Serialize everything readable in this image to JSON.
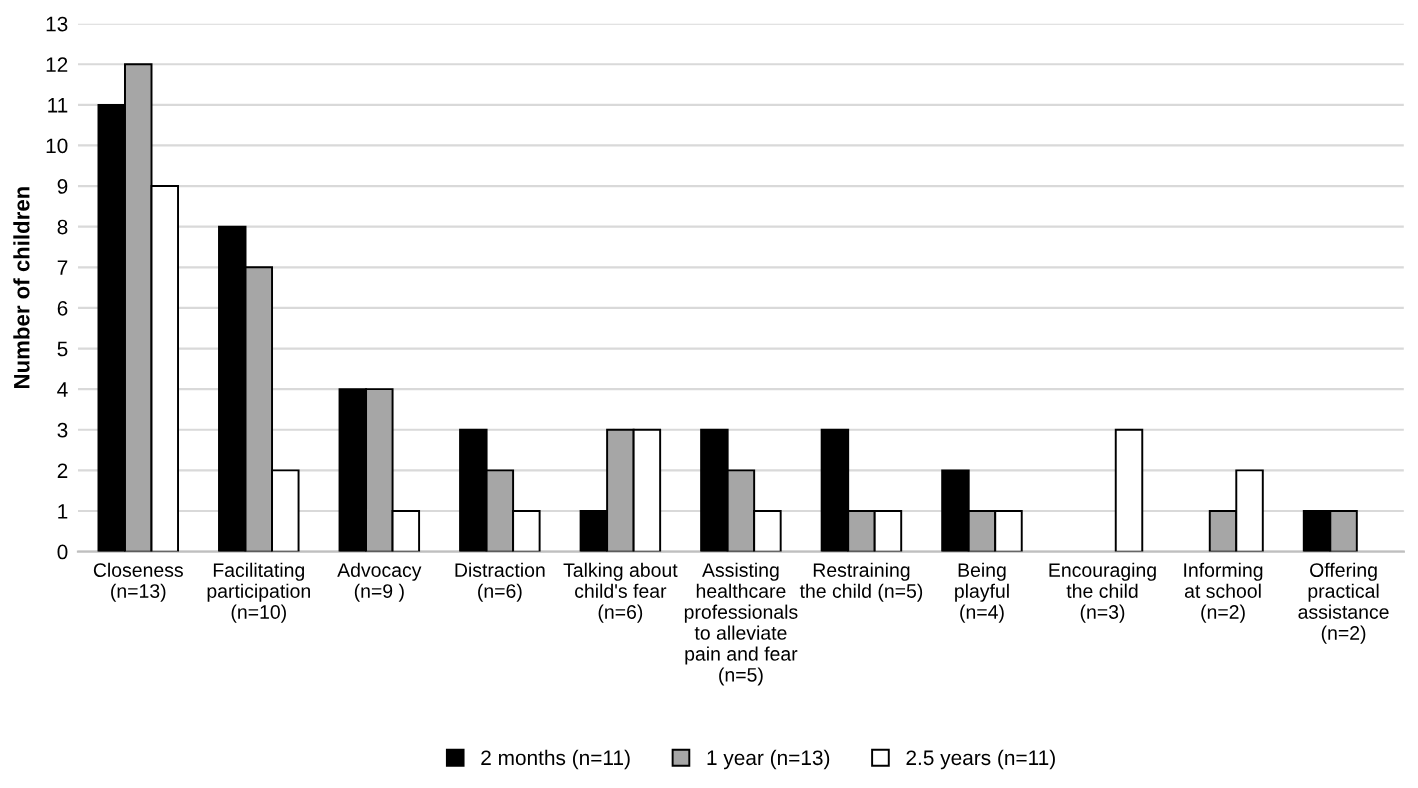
{
  "chart_data": {
    "type": "bar",
    "ylabel": "Number of children",
    "categories": [
      "Closeness\n(n=13)",
      "Facilitating\nparticipation\n(n=10)",
      "Advocacy\n(n=9 )",
      "Distraction\n(n=6)",
      "Talking about\nchild's fear\n(n=6)",
      "Assisting\nhealthcare\nprofessionals\nto alleviate\npain and fear\n(n=5)",
      "Restraining\nthe child (n=5)",
      "Being\nplayful\n(n=4)",
      "Encouraging\nthe child\n(n=3)",
      "Informing\nat school\n(n=2)",
      "Offering\npractical\nassistance\n(n=2)"
    ],
    "series": [
      {
        "name": "2 months (n=11)",
        "color": "#000000",
        "values": [
          11,
          8,
          4,
          3,
          1,
          3,
          3,
          2,
          null,
          null,
          1
        ]
      },
      {
        "name": "1 year (n=13)",
        "color": "#a6a6a6",
        "values": [
          12,
          7,
          4,
          2,
          3,
          2,
          1,
          1,
          null,
          1,
          1
        ]
      },
      {
        "name": "2.5 years (n=11)",
        "color": "#ffffff",
        "values": [
          9,
          2,
          1,
          1,
          3,
          1,
          1,
          1,
          3,
          2,
          null
        ]
      }
    ],
    "ylim": [
      0,
      13
    ],
    "yticks": [
      0,
      1,
      2,
      3,
      4,
      5,
      6,
      7,
      8,
      9,
      10,
      11,
      12,
      13
    ],
    "grid": "y",
    "legend": "bottom"
  }
}
